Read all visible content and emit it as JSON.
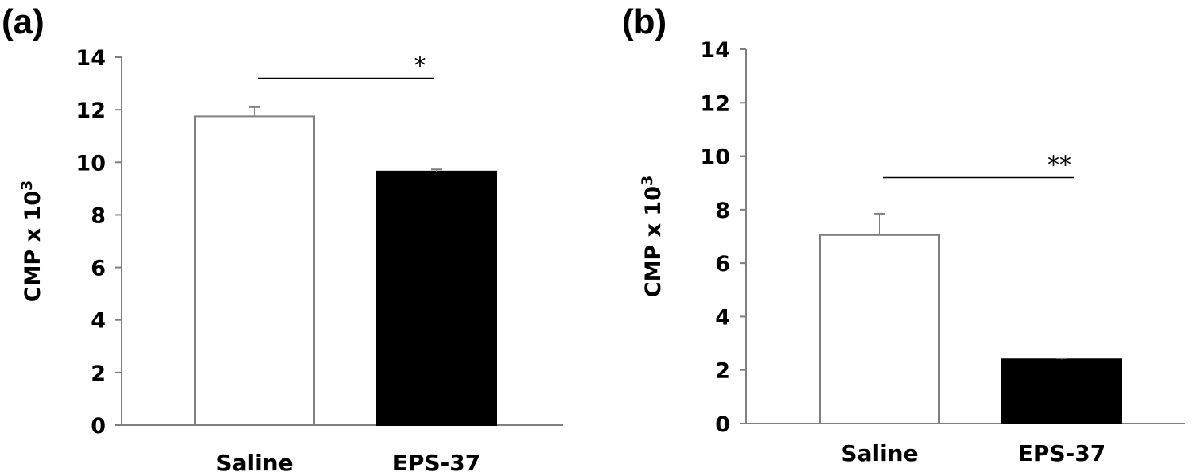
{
  "chart_data": [
    {
      "type": "bar",
      "panel_label": "(a)",
      "categories": [
        "Saline",
        "EPS-37"
      ],
      "values": [
        11.75,
        9.65
      ],
      "errors": [
        0.35,
        0.08
      ],
      "ylabel": "CMP x 10",
      "ylabel_sup": "3",
      "ylim": [
        0,
        14
      ],
      "yticks": [
        "0",
        "2",
        "4",
        "6",
        "8",
        "10",
        "12",
        "14"
      ],
      "bar_colors": [
        "#ffffff",
        "#000000"
      ],
      "significance": {
        "label": "*",
        "y": 13.2
      },
      "grid": false
    },
    {
      "type": "bar",
      "panel_label": "(b)",
      "categories": [
        "Saline",
        "EPS-37"
      ],
      "values": [
        7.05,
        2.4
      ],
      "errors": [
        0.8,
        0.04
      ],
      "ylabel": "CMP x 10",
      "ylabel_sup": "3",
      "ylim": [
        0,
        14
      ],
      "yticks": [
        "0",
        "2",
        "4",
        "6",
        "8",
        "10",
        "12",
        "14"
      ],
      "bar_colors": [
        "#ffffff",
        "#000000"
      ],
      "significance": {
        "label": "**",
        "y": 9.2
      },
      "grid": false
    }
  ]
}
